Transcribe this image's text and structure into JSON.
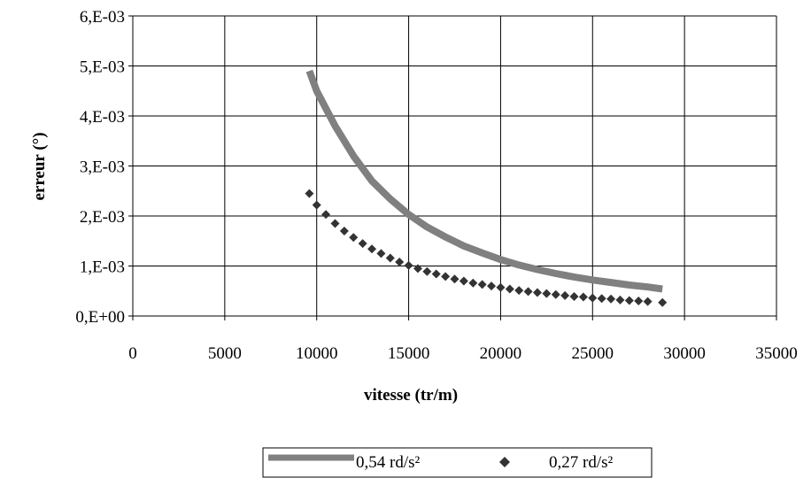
{
  "chart_data": {
    "type": "scatter",
    "title": "",
    "xlabel": "vitesse (tr/m)",
    "ylabel": "erreur  (°)",
    "xlim": [
      0,
      35000
    ],
    "ylim": [
      0,
      0.006
    ],
    "xticks": [
      0,
      5000,
      10000,
      15000,
      20000,
      25000,
      30000,
      35000
    ],
    "xtick_labels": [
      "0",
      "5000",
      "10000",
      "15000",
      "20000",
      "25000",
      "30000",
      "35000"
    ],
    "yticks": [
      0,
      0.001,
      0.002,
      0.003,
      0.004,
      0.005,
      0.006
    ],
    "ytick_labels": [
      "0,E+00",
      "1,E-03",
      "2,E-03",
      "3,E-03",
      "4,E-03",
      "5,E-03",
      "6,E-03"
    ],
    "grid": true,
    "legend_position": "bottom",
    "series": [
      {
        "name": "0,54 rd/s²",
        "style": "line",
        "color": "#808080",
        "x": [
          9600,
          10000,
          11000,
          12000,
          13000,
          14000,
          15000,
          16000,
          17000,
          18000,
          19000,
          20000,
          21000,
          22000,
          23000,
          24000,
          25000,
          26000,
          27000,
          28000,
          28800
        ],
        "y": [
          0.0049,
          0.0045,
          0.0038,
          0.0032,
          0.0027,
          0.00234,
          0.00203,
          0.00178,
          0.00158,
          0.0014,
          0.00126,
          0.00113,
          0.00102,
          0.00093,
          0.00085,
          0.00078,
          0.00072,
          0.00067,
          0.00062,
          0.00058,
          0.00054
        ]
      },
      {
        "name": "0,27 rd/s²",
        "style": "markers",
        "marker": "diamond",
        "color": "#333333",
        "x": [
          9600,
          10000,
          10500,
          11000,
          11500,
          12000,
          12500,
          13000,
          13500,
          14000,
          14500,
          15000,
          15500,
          16000,
          16500,
          17000,
          17500,
          18000,
          18500,
          19000,
          19500,
          20000,
          20500,
          21000,
          21500,
          22000,
          22500,
          23000,
          23500,
          24000,
          24500,
          25000,
          25500,
          26000,
          26500,
          27000,
          27500,
          28000,
          28800
        ],
        "y": [
          0.00245,
          0.00222,
          0.00203,
          0.00185,
          0.0017,
          0.00157,
          0.00145,
          0.00134,
          0.00125,
          0.00116,
          0.00108,
          0.00101,
          0.00095,
          0.00089,
          0.00084,
          0.00079,
          0.00074,
          0.0007,
          0.00066,
          0.00063,
          0.0006,
          0.00057,
          0.00054,
          0.00051,
          0.00049,
          0.00047,
          0.00045,
          0.00043,
          0.00041,
          0.00039,
          0.00038,
          0.00036,
          0.00035,
          0.00034,
          0.00032,
          0.00031,
          0.0003,
          0.00029,
          0.00027
        ]
      }
    ]
  }
}
